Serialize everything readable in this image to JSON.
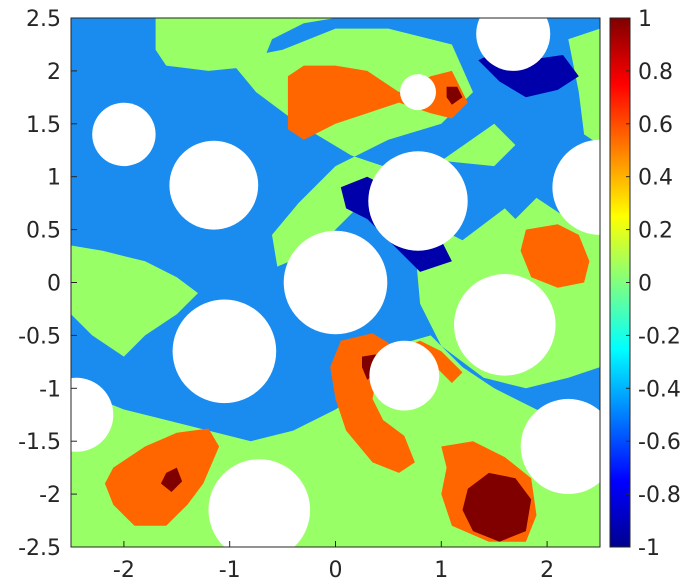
{
  "chart_data": {
    "type": "heatmap",
    "title": "",
    "xlabel": "",
    "ylabel": "",
    "xlim": [
      -2.5,
      2.5
    ],
    "ylim": [
      -2.5,
      2.5
    ],
    "x_ticks": [
      -2,
      -1,
      0,
      1,
      2
    ],
    "y_ticks": [
      2.5,
      2,
      1.5,
      1,
      0.5,
      0,
      -0.5,
      -1,
      -1.5,
      -2,
      -2.5
    ],
    "x_tick_labels": [
      "-2",
      "-1",
      "0",
      "1",
      "2"
    ],
    "y_tick_labels": [
      "2.5",
      "2",
      "1.5",
      "1",
      "0.5",
      "0",
      "-0.5",
      "-1",
      "-1.5",
      "-2",
      "-2.5"
    ],
    "colorbar": {
      "colormap": "jet",
      "range": [
        -1,
        1
      ],
      "ticks": [
        1,
        0.8,
        0.6,
        0.4,
        0.2,
        0,
        -0.2,
        -0.4,
        -0.6,
        -0.8,
        -1
      ],
      "tick_labels": [
        "1",
        "0.8",
        "0.6",
        "0.4",
        "0.2",
        "0",
        "-0.2",
        "-0.4",
        "-0.6",
        "-0.8",
        "-1"
      ]
    },
    "level_colors": {
      "-1": "#0000aa",
      "-0.6": "#1a8cf0",
      "0": "#99ff66",
      "0.6": "#ff6600",
      "1": "#800000"
    },
    "background_level": -0.6,
    "regions": [
      {
        "level": 0,
        "points": [
          [
            -2.5,
            2.5
          ],
          [
            -1.7,
            2.5
          ],
          [
            -1.7,
            2.2
          ],
          [
            -1.6,
            2.05
          ],
          [
            -1.2,
            2.0
          ],
          [
            -0.7,
            2.05
          ],
          [
            -0.6,
            2.3
          ],
          [
            -0.3,
            2.45
          ],
          [
            0.0,
            2.5
          ],
          [
            -2.5,
            2.5
          ]
        ]
      },
      {
        "level": 0,
        "points": [
          [
            -1.0,
            2.1
          ],
          [
            -0.5,
            2.2
          ],
          [
            0.0,
            2.4
          ],
          [
            0.5,
            2.4
          ],
          [
            1.1,
            2.25
          ],
          [
            1.3,
            1.8
          ],
          [
            1.0,
            1.5
          ],
          [
            0.5,
            1.35
          ],
          [
            0.0,
            1.1
          ],
          [
            -0.35,
            0.75
          ],
          [
            -0.6,
            0.45
          ],
          [
            -0.55,
            0.15
          ],
          [
            -0.2,
            0.3
          ],
          [
            0.2,
            0.7
          ],
          [
            0.6,
            1.0
          ],
          [
            1.0,
            1.15
          ],
          [
            1.5,
            1.5
          ],
          [
            1.7,
            1.3
          ],
          [
            1.5,
            1.1
          ],
          [
            1.0,
            1.15
          ],
          [
            0.6,
            1.05
          ],
          [
            0.15,
            1.2
          ],
          [
            -0.35,
            1.5
          ],
          [
            -0.75,
            1.8
          ],
          [
            -1.0,
            2.1
          ]
        ]
      },
      {
        "level": 0,
        "points": [
          [
            -2.5,
            0.35
          ],
          [
            -2.2,
            0.3
          ],
          [
            -1.8,
            0.2
          ],
          [
            -1.5,
            0.05
          ],
          [
            -1.3,
            -0.1
          ],
          [
            -1.5,
            -0.3
          ],
          [
            -1.8,
            -0.5
          ],
          [
            -2.0,
            -0.7
          ],
          [
            -2.3,
            -0.5
          ],
          [
            -2.5,
            -0.3
          ]
        ]
      },
      {
        "level": 0,
        "points": [
          [
            0.75,
            0.35
          ],
          [
            1.0,
            0.5
          ],
          [
            1.2,
            0.4
          ],
          [
            1.6,
            0.7
          ],
          [
            1.7,
            0.6
          ],
          [
            1.9,
            0.8
          ],
          [
            2.2,
            0.6
          ],
          [
            2.5,
            0.5
          ],
          [
            2.5,
            -0.8
          ],
          [
            2.2,
            -0.9
          ],
          [
            1.8,
            -1.0
          ],
          [
            1.4,
            -0.9
          ],
          [
            1.0,
            -0.6
          ],
          [
            0.8,
            -0.2
          ]
        ]
      },
      {
        "level": 0,
        "points": [
          [
            -2.5,
            -1.0
          ],
          [
            -2.0,
            -1.2
          ],
          [
            -1.6,
            -1.3
          ],
          [
            -1.2,
            -1.4
          ],
          [
            -0.8,
            -1.5
          ],
          [
            -0.4,
            -1.4
          ],
          [
            0.0,
            -1.2
          ],
          [
            0.3,
            -1.0
          ],
          [
            0.55,
            -0.6
          ],
          [
            0.9,
            -0.5
          ],
          [
            1.2,
            -0.8
          ],
          [
            1.5,
            -1.0
          ],
          [
            1.9,
            -1.2
          ],
          [
            2.2,
            -1.3
          ],
          [
            2.5,
            -1.45
          ],
          [
            2.5,
            -2.5
          ],
          [
            -2.5,
            -2.5
          ]
        ]
      },
      {
        "level": 0,
        "points": [
          [
            2.2,
            2.3
          ],
          [
            2.5,
            2.4
          ],
          [
            2.5,
            1.3
          ],
          [
            2.35,
            1.4
          ],
          [
            2.3,
            1.8
          ]
        ]
      },
      {
        "level": 0.6,
        "points": [
          [
            -0.45,
            1.95
          ],
          [
            -0.3,
            2.05
          ],
          [
            0.0,
            2.05
          ],
          [
            0.3,
            2.0
          ],
          [
            0.6,
            1.8
          ],
          [
            0.9,
            1.95
          ],
          [
            1.1,
            2.0
          ],
          [
            1.25,
            1.7
          ],
          [
            1.1,
            1.55
          ],
          [
            0.9,
            1.6
          ],
          [
            0.6,
            1.7
          ],
          [
            0.3,
            1.6
          ],
          [
            0.0,
            1.5
          ],
          [
            -0.3,
            1.35
          ],
          [
            -0.45,
            1.45
          ]
        ]
      },
      {
        "level": 0.6,
        "points": [
          [
            1.8,
            0.5
          ],
          [
            2.1,
            0.55
          ],
          [
            2.3,
            0.45
          ],
          [
            2.4,
            0.2
          ],
          [
            2.35,
            0.0
          ],
          [
            2.1,
            -0.05
          ],
          [
            1.85,
            0.05
          ],
          [
            1.75,
            0.3
          ]
        ]
      },
      {
        "level": 0.6,
        "points": [
          [
            0.05,
            -0.55
          ],
          [
            0.35,
            -0.48
          ],
          [
            0.55,
            -0.6
          ],
          [
            0.4,
            -0.85
          ],
          [
            0.35,
            -1.1
          ],
          [
            0.45,
            -1.3
          ],
          [
            0.65,
            -1.45
          ],
          [
            0.75,
            -1.7
          ],
          [
            0.6,
            -1.8
          ],
          [
            0.35,
            -1.7
          ],
          [
            0.1,
            -1.4
          ],
          [
            0.0,
            -1.1
          ],
          [
            -0.05,
            -0.8
          ]
        ]
      },
      {
        "level": 0.6,
        "points": [
          [
            0.55,
            -0.65
          ],
          [
            0.8,
            -0.55
          ],
          [
            1.0,
            -0.65
          ],
          [
            1.2,
            -0.85
          ],
          [
            1.1,
            -0.95
          ],
          [
            0.95,
            -0.8
          ]
        ]
      },
      {
        "level": 0.6,
        "points": [
          [
            1.0,
            -1.55
          ],
          [
            1.3,
            -1.5
          ],
          [
            1.6,
            -1.65
          ],
          [
            1.85,
            -1.85
          ],
          [
            1.9,
            -2.2
          ],
          [
            1.8,
            -2.45
          ],
          [
            1.45,
            -2.45
          ],
          [
            1.1,
            -2.3
          ],
          [
            1.0,
            -2.0
          ],
          [
            1.05,
            -1.75
          ]
        ]
      },
      {
        "level": 0.6,
        "points": [
          [
            -2.1,
            -1.75
          ],
          [
            -1.8,
            -1.55
          ],
          [
            -1.5,
            -1.42
          ],
          [
            -1.2,
            -1.38
          ],
          [
            -1.1,
            -1.55
          ],
          [
            -1.25,
            -1.9
          ],
          [
            -1.4,
            -2.1
          ],
          [
            -1.6,
            -2.3
          ],
          [
            -1.9,
            -2.3
          ],
          [
            -2.1,
            -2.1
          ],
          [
            -2.18,
            -1.9
          ]
        ]
      },
      {
        "level": -1,
        "points": [
          [
            1.35,
            2.1
          ],
          [
            1.55,
            1.9
          ],
          [
            1.8,
            1.75
          ],
          [
            2.1,
            1.82
          ],
          [
            2.3,
            1.95
          ],
          [
            2.15,
            2.15
          ],
          [
            1.8,
            2.1
          ],
          [
            1.55,
            2.2
          ]
        ]
      },
      {
        "level": -1,
        "points": [
          [
            0.05,
            0.9
          ],
          [
            0.3,
            1.0
          ],
          [
            0.5,
            0.9
          ],
          [
            0.65,
            0.55
          ],
          [
            0.75,
            0.35
          ],
          [
            1.0,
            0.4
          ],
          [
            1.1,
            0.2
          ],
          [
            0.8,
            0.1
          ],
          [
            0.55,
            0.35
          ],
          [
            0.3,
            0.6
          ],
          [
            0.1,
            0.7
          ]
        ]
      },
      {
        "level": 1,
        "points": [
          [
            1.05,
            1.85
          ],
          [
            1.15,
            1.85
          ],
          [
            1.2,
            1.75
          ],
          [
            1.1,
            1.68
          ],
          [
            1.05,
            1.75
          ]
        ]
      },
      {
        "level": 1,
        "points": [
          [
            0.25,
            -0.7
          ],
          [
            0.38,
            -0.68
          ],
          [
            0.4,
            -0.85
          ],
          [
            0.3,
            -0.92
          ],
          [
            0.25,
            -0.8
          ]
        ]
      },
      {
        "level": 1,
        "points": [
          [
            -1.6,
            -1.8
          ],
          [
            -1.5,
            -1.75
          ],
          [
            -1.45,
            -1.88
          ],
          [
            -1.55,
            -1.98
          ],
          [
            -1.65,
            -1.9
          ]
        ]
      },
      {
        "level": 1,
        "points": [
          [
            1.25,
            -1.95
          ],
          [
            1.45,
            -1.8
          ],
          [
            1.7,
            -1.85
          ],
          [
            1.85,
            -2.05
          ],
          [
            1.8,
            -2.35
          ],
          [
            1.55,
            -2.45
          ],
          [
            1.3,
            -2.35
          ],
          [
            1.2,
            -2.15
          ]
        ]
      }
    ],
    "holes": [
      {
        "x": -2.0,
        "y": 1.4,
        "r": 0.3
      },
      {
        "x": -1.15,
        "y": 0.92,
        "r": 0.42
      },
      {
        "x": 0.78,
        "y": 0.77,
        "r": 0.47
      },
      {
        "x": 0.0,
        "y": 0.0,
        "r": 0.49
      },
      {
        "x": -1.05,
        "y": -0.65,
        "r": 0.49
      },
      {
        "x": 0.65,
        "y": -0.88,
        "r": 0.33
      },
      {
        "x": 1.6,
        "y": -0.4,
        "r": 0.48
      },
      {
        "x": -2.45,
        "y": -1.25,
        "r": 0.35
      },
      {
        "x": -0.72,
        "y": -2.15,
        "r": 0.48
      },
      {
        "x": 2.2,
        "y": -1.55,
        "r": 0.45
      },
      {
        "x": 2.5,
        "y": 0.9,
        "r": 0.45
      },
      {
        "x": 1.68,
        "y": 2.35,
        "r": 0.35
      },
      {
        "x": 0.78,
        "y": 1.8,
        "r": 0.17
      }
    ]
  }
}
